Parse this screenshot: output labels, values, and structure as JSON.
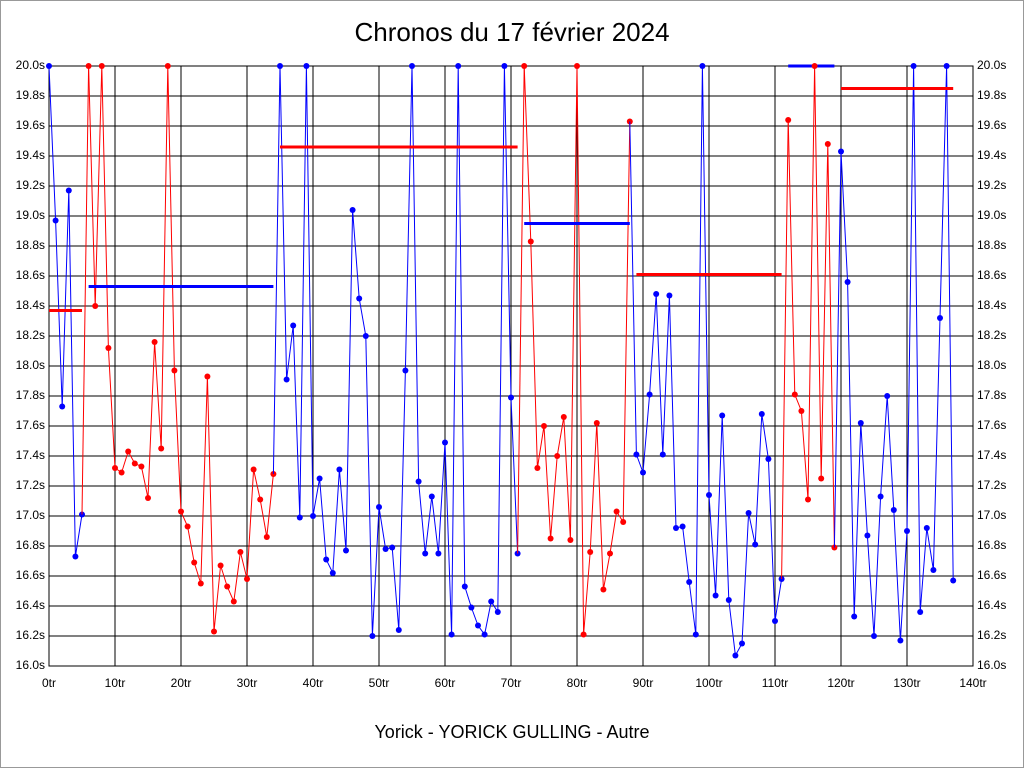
{
  "chart_data": {
    "type": "line",
    "title": "Chronos du 17 février 2024",
    "xlabel": "Yorick - YORICK GULLING - Autre",
    "xlim": [
      0,
      140
    ],
    "ylim": [
      16,
      20
    ],
    "xticks": [
      {
        "value": 0,
        "label": "0tr"
      },
      {
        "value": 10,
        "label": "10tr"
      },
      {
        "value": 20,
        "label": "20tr"
      },
      {
        "value": 30,
        "label": "30tr"
      },
      {
        "value": 40,
        "label": "40tr"
      },
      {
        "value": 50,
        "label": "50tr"
      },
      {
        "value": 60,
        "label": "60tr"
      },
      {
        "value": 70,
        "label": "70tr"
      },
      {
        "value": 80,
        "label": "80tr"
      },
      {
        "value": 90,
        "label": "90tr"
      },
      {
        "value": 100,
        "label": "100tr"
      },
      {
        "value": 110,
        "label": "110tr"
      },
      {
        "value": 120,
        "label": "120tr"
      },
      {
        "value": 130,
        "label": "130tr"
      },
      {
        "value": 140,
        "label": "140tr"
      }
    ],
    "yticks": [
      {
        "value": 16.0,
        "label": "16.0s"
      },
      {
        "value": 16.2,
        "label": "16.2s"
      },
      {
        "value": 16.4,
        "label": "16.4s"
      },
      {
        "value": 16.6,
        "label": "16.6s"
      },
      {
        "value": 16.8,
        "label": "16.8s"
      },
      {
        "value": 17.0,
        "label": "17.0s"
      },
      {
        "value": 17.2,
        "label": "17.2s"
      },
      {
        "value": 17.4,
        "label": "17.4s"
      },
      {
        "value": 17.6,
        "label": "17.6s"
      },
      {
        "value": 17.8,
        "label": "17.8s"
      },
      {
        "value": 18.0,
        "label": "18.0s"
      },
      {
        "value": 18.2,
        "label": "18.2s"
      },
      {
        "value": 18.4,
        "label": "18.4s"
      },
      {
        "value": 18.6,
        "label": "18.6s"
      },
      {
        "value": 18.8,
        "label": "18.8s"
      },
      {
        "value": 19.0,
        "label": "19.0s"
      },
      {
        "value": 19.2,
        "label": "19.2s"
      },
      {
        "value": 19.4,
        "label": "19.4s"
      },
      {
        "value": 19.6,
        "label": "19.6s"
      },
      {
        "value": 19.8,
        "label": "19.8s"
      },
      {
        "value": 20.0,
        "label": "20.0s"
      }
    ],
    "grid": true,
    "series": [
      {
        "color": "#0000ff",
        "mean_color": "#ff0000",
        "mean": 18.37,
        "x": [
          0,
          1,
          2,
          3,
          4,
          5
        ],
        "values": [
          20.0,
          18.97,
          17.73,
          19.17,
          16.73,
          17.01
        ]
      },
      {
        "color": "#ff0000",
        "mean_color": "#0000ff",
        "mean": 18.53,
        "x": [
          6,
          7,
          8,
          9,
          10,
          11,
          12,
          13,
          14,
          15,
          16,
          17,
          18,
          19,
          20,
          21,
          22,
          23,
          24,
          25,
          26,
          27,
          28,
          29,
          30,
          31,
          32,
          33,
          34
        ],
        "values": [
          20.0,
          18.4,
          20.0,
          18.12,
          17.32,
          17.29,
          17.43,
          17.35,
          17.33,
          17.12,
          18.16,
          17.45,
          20.0,
          17.97,
          17.03,
          16.93,
          16.69,
          16.55,
          17.93,
          16.23,
          16.67,
          16.53,
          16.43,
          16.76,
          16.58,
          17.31,
          17.11,
          16.86,
          17.28
        ]
      },
      {
        "color": "#0000ff",
        "mean_color": "#ff0000",
        "mean": 19.46,
        "x": [
          35,
          36,
          37,
          38,
          39,
          40,
          41,
          42,
          43,
          44,
          45,
          46,
          47,
          48,
          49,
          50,
          51,
          52,
          53,
          54,
          55,
          56,
          57,
          58,
          59,
          60,
          61,
          62,
          63,
          64,
          65,
          66,
          67,
          68,
          69,
          70,
          71
        ],
        "values": [
          20.0,
          17.91,
          18.27,
          16.99,
          20.0,
          17.0,
          17.25,
          16.71,
          16.62,
          17.31,
          16.77,
          19.04,
          18.45,
          18.2,
          16.2,
          17.06,
          16.78,
          16.79,
          16.24,
          17.97,
          20.0,
          17.23,
          16.75,
          17.13,
          16.75,
          17.49,
          16.21,
          20.0,
          16.53,
          16.39,
          16.27,
          16.21,
          16.43,
          16.36,
          20.0,
          17.79,
          16.75
        ]
      },
      {
        "color": "#ff0000",
        "mean_color": "#0000ff",
        "mean": 18.95,
        "x": [
          72,
          73,
          74,
          75,
          76,
          77,
          78,
          79,
          80,
          81,
          82,
          83,
          84,
          85,
          86,
          87,
          88
        ],
        "values": [
          20.0,
          18.83,
          17.32,
          17.6,
          16.85,
          17.4,
          17.66,
          16.84,
          20.0,
          16.21,
          16.76,
          17.62,
          16.51,
          16.75,
          17.03,
          16.96,
          19.63
        ]
      },
      {
        "color": "#0000ff",
        "mean_color": "#ff0000",
        "mean": 18.61,
        "x": [
          89,
          90,
          91,
          92,
          93,
          94,
          95,
          96,
          97,
          98,
          99,
          100,
          101,
          102,
          103,
          104,
          105,
          106,
          107,
          108,
          109,
          110,
          111
        ],
        "values": [
          17.41,
          17.29,
          17.81,
          18.48,
          17.41,
          18.47,
          16.92,
          16.93,
          16.56,
          16.21,
          20.0,
          17.14,
          16.47,
          17.67,
          16.44,
          16.07,
          16.15,
          17.02,
          16.81,
          17.68,
          17.38,
          16.3,
          16.58
        ]
      },
      {
        "color": "#ff0000",
        "mean_color": "#0000ff",
        "mean": 20.0,
        "x": [
          112,
          113,
          114,
          115,
          116,
          117,
          118,
          119
        ],
        "values": [
          19.64,
          17.81,
          17.7,
          17.11,
          20.0,
          17.25,
          19.48,
          16.79
        ]
      },
      {
        "color": "#0000ff",
        "mean_color": "#ff0000",
        "mean": 19.85,
        "x": [
          120,
          121,
          122,
          123,
          124,
          125,
          126,
          127,
          128,
          129,
          130,
          131,
          132,
          133,
          134,
          135,
          136,
          137
        ],
        "values": [
          19.43,
          18.56,
          16.33,
          17.62,
          16.87,
          16.2,
          17.13,
          17.8,
          17.04,
          16.17,
          16.9,
          20.0,
          16.36,
          16.92,
          16.64,
          18.32,
          20.0,
          16.57
        ]
      }
    ]
  }
}
